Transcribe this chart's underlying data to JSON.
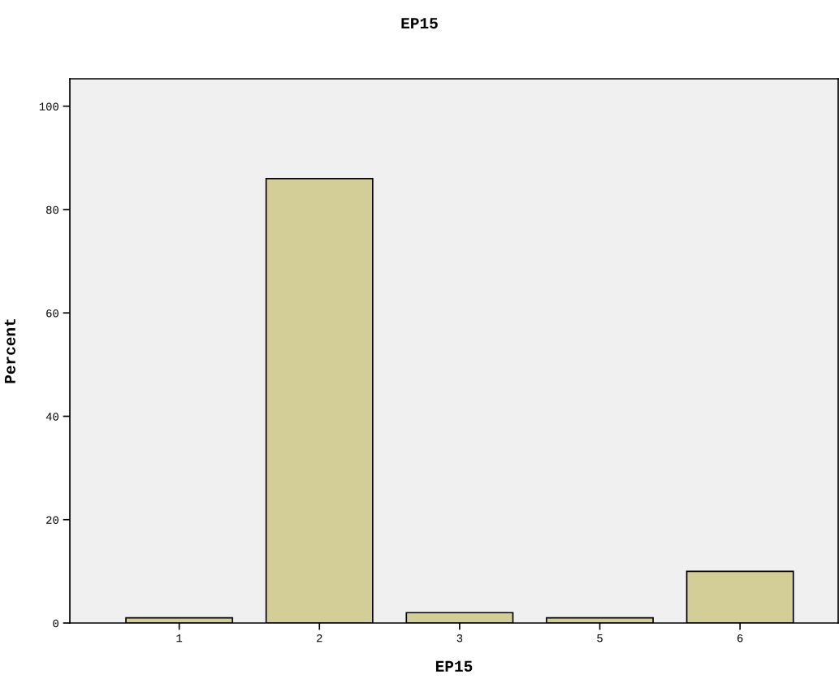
{
  "chart_data": {
    "type": "bar",
    "title": "EP15",
    "xlabel": "EP15",
    "ylabel": "Percent",
    "categories": [
      "1",
      "2",
      "3",
      "5",
      "6"
    ],
    "values": [
      1,
      86,
      2,
      1,
      10
    ],
    "color": "#d3ce97",
    "ylim": [
      0,
      105.3
    ],
    "yticks": [
      0,
      20,
      40,
      60,
      80,
      100
    ],
    "grid": false,
    "legend": false
  }
}
